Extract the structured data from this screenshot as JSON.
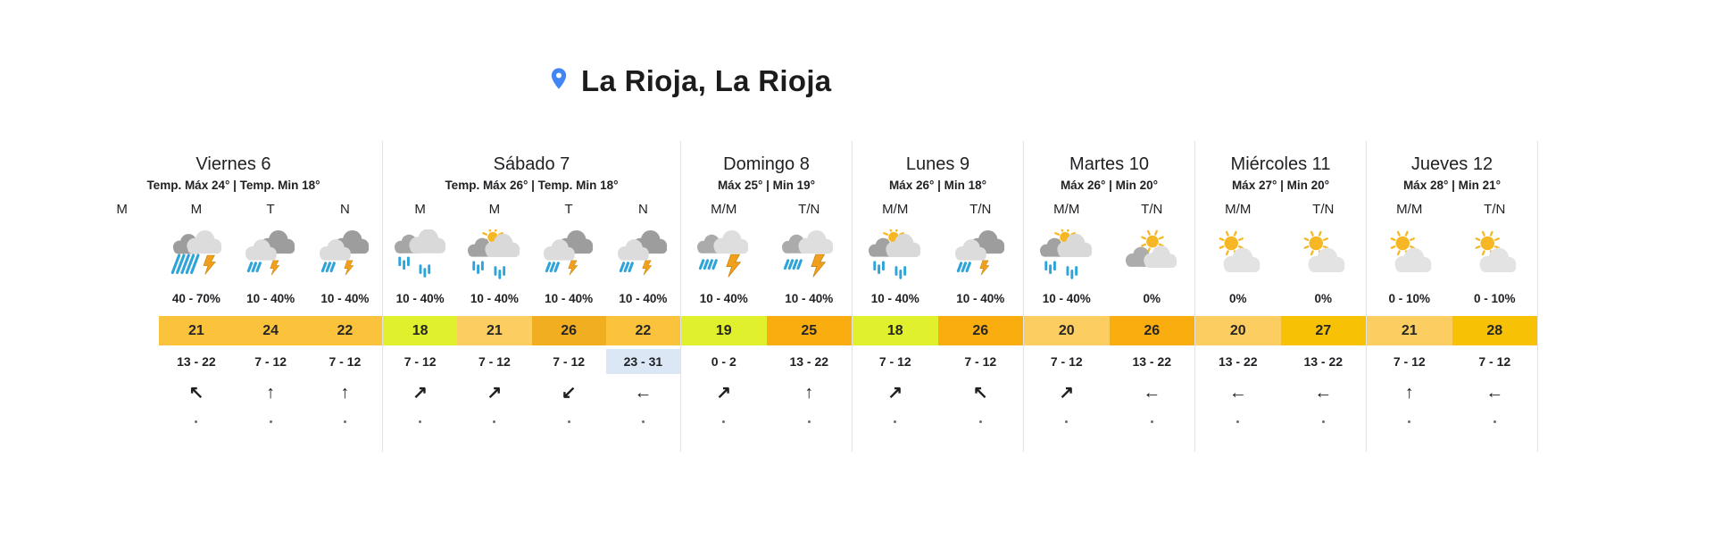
{
  "header": {
    "location_title": "La Rioja, La Rioja"
  },
  "colors": {
    "accent_pin_blue": "#4285F4",
    "temp_green_yellow": "#E0F02D",
    "temp_amber": "#FBC33C",
    "temp_amber_light": "#FCCD60",
    "temp_dark_amber": "#F2AE21",
    "temp_orange": "#FAAD0E",
    "temp_gold": "#F7C105",
    "wind_highlight_blue": "#DCE7F5",
    "rain_blue": "#2FA4D8",
    "bolt_orange": "#F0A01C",
    "sun_yellow": "#F5B824",
    "cloud_dark": "#9D9D9D",
    "cloud_light": "#DCDCDC"
  },
  "days": [
    {
      "name": "Viernes 6",
      "temp_summary": "Temp. Máx 24° | Temp. Min 18°",
      "slots": [
        {
          "period": "M",
          "empty": true
        },
        {
          "period": "M",
          "icon": "storm-heavy-rain-icon",
          "precip": "40 - 70%",
          "temp": "21",
          "temp_color": "amber",
          "wind": "13 - 22",
          "arrow": "↖"
        },
        {
          "period": "T",
          "icon": "storm-icon",
          "precip": "10 - 40%",
          "temp": "24",
          "temp_color": "amber",
          "wind": "7 - 12",
          "arrow": "↑"
        },
        {
          "period": "N",
          "icon": "storm-icon",
          "precip": "10 - 40%",
          "temp": "22",
          "temp_color": "amber",
          "wind": "7 - 12",
          "arrow": "↑"
        }
      ]
    },
    {
      "name": "Sábado 7",
      "temp_summary": "Temp. Máx 26° | Temp. Min 18°",
      "slots": [
        {
          "period": "M",
          "icon": "rain-icon",
          "precip": "10 - 40%",
          "temp": "18",
          "temp_color": "green_yellow",
          "wind": "7 - 12",
          "arrow": "↗"
        },
        {
          "period": "M",
          "icon": "sun-rain-icon",
          "precip": "10 - 40%",
          "temp": "21",
          "temp_color": "amber_light",
          "wind": "7 - 12",
          "arrow": "↗"
        },
        {
          "period": "T",
          "icon": "storm-icon",
          "precip": "10 - 40%",
          "temp": "26",
          "temp_color": "dark_amber",
          "wind": "7 - 12",
          "arrow": "↙"
        },
        {
          "period": "N",
          "icon": "storm-icon",
          "precip": "10 - 40%",
          "temp": "22",
          "temp_color": "amber",
          "wind": "23 - 31",
          "wind_highlight": true,
          "arrow": "←"
        }
      ]
    },
    {
      "name": "Domingo 8",
      "temp_summary": "Máx 25° | Min 19°",
      "slots": [
        {
          "period": "M/M",
          "icon": "storm-bolt-icon",
          "precip": "10 - 40%",
          "temp": "19",
          "temp_color": "green_yellow",
          "wind": "0 - 2",
          "arrow": "↗"
        },
        {
          "period": "T/N",
          "icon": "storm-bolt-icon",
          "precip": "10 - 40%",
          "temp": "25",
          "temp_color": "orange",
          "wind": "13 - 22",
          "arrow": "↑"
        }
      ]
    },
    {
      "name": "Lunes 9",
      "temp_summary": "Máx 26° | Min 18°",
      "slots": [
        {
          "period": "M/M",
          "icon": "sun-rain-icon",
          "precip": "10 - 40%",
          "temp": "18",
          "temp_color": "green_yellow",
          "wind": "7 - 12",
          "arrow": "↗"
        },
        {
          "period": "T/N",
          "icon": "storm-icon",
          "precip": "10 - 40%",
          "temp": "26",
          "temp_color": "orange",
          "wind": "7 - 12",
          "arrow": "↖"
        }
      ]
    },
    {
      "name": "Martes 10",
      "temp_summary": "Máx 26° | Min 20°",
      "slots": [
        {
          "period": "M/M",
          "icon": "sun-rain-icon",
          "precip": "10 - 40%",
          "temp": "20",
          "temp_color": "amber_light",
          "wind": "7 - 12",
          "arrow": "↗"
        },
        {
          "period": "T/N",
          "icon": "sun-behind-cloud-icon",
          "precip": "0%",
          "temp": "26",
          "temp_color": "orange",
          "wind": "13 - 22",
          "arrow": "←"
        }
      ]
    },
    {
      "name": "Miércoles 11",
      "temp_summary": "Máx 27° | Min 20°",
      "slots": [
        {
          "period": "M/M",
          "icon": "mostly-sunny-icon",
          "precip": "0%",
          "temp": "20",
          "temp_color": "amber_light",
          "wind": "13 - 22",
          "arrow": "←"
        },
        {
          "period": "T/N",
          "icon": "mostly-sunny-icon",
          "precip": "0%",
          "temp": "27",
          "temp_color": "gold",
          "wind": "13 - 22",
          "arrow": "←"
        }
      ]
    },
    {
      "name": "Jueves 12",
      "temp_summary": "Máx 28° | Min 21°",
      "slots": [
        {
          "period": "M/M",
          "icon": "mostly-sunny-icon",
          "precip": "0 - 10%",
          "temp": "21",
          "temp_color": "amber_light",
          "wind": "7 - 12",
          "arrow": "↑"
        },
        {
          "period": "T/N",
          "icon": "mostly-sunny-icon",
          "precip": "0 - 10%",
          "temp": "28",
          "temp_color": "gold",
          "wind": "7 - 12",
          "arrow": "←"
        }
      ]
    }
  ]
}
